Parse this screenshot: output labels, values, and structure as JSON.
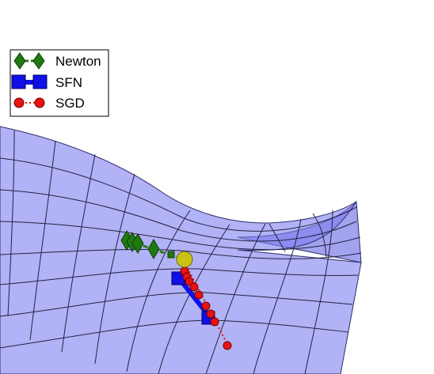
{
  "legend": {
    "items": [
      {
        "label": "Newton",
        "marker": "diamond",
        "line_style": "dashed",
        "color": "#2e7d1a"
      },
      {
        "label": "SFN",
        "marker": "square",
        "line_style": "solid",
        "color": "#1010e6"
      },
      {
        "label": "SGD",
        "marker": "circle",
        "line_style": "dotted",
        "color": "#e8130f"
      }
    ]
  },
  "surface": {
    "fill_color": "#8080ee",
    "edge_color": "#3a3a7a"
  },
  "start_point": {
    "marker": "circle",
    "color": "#c8c217"
  }
}
